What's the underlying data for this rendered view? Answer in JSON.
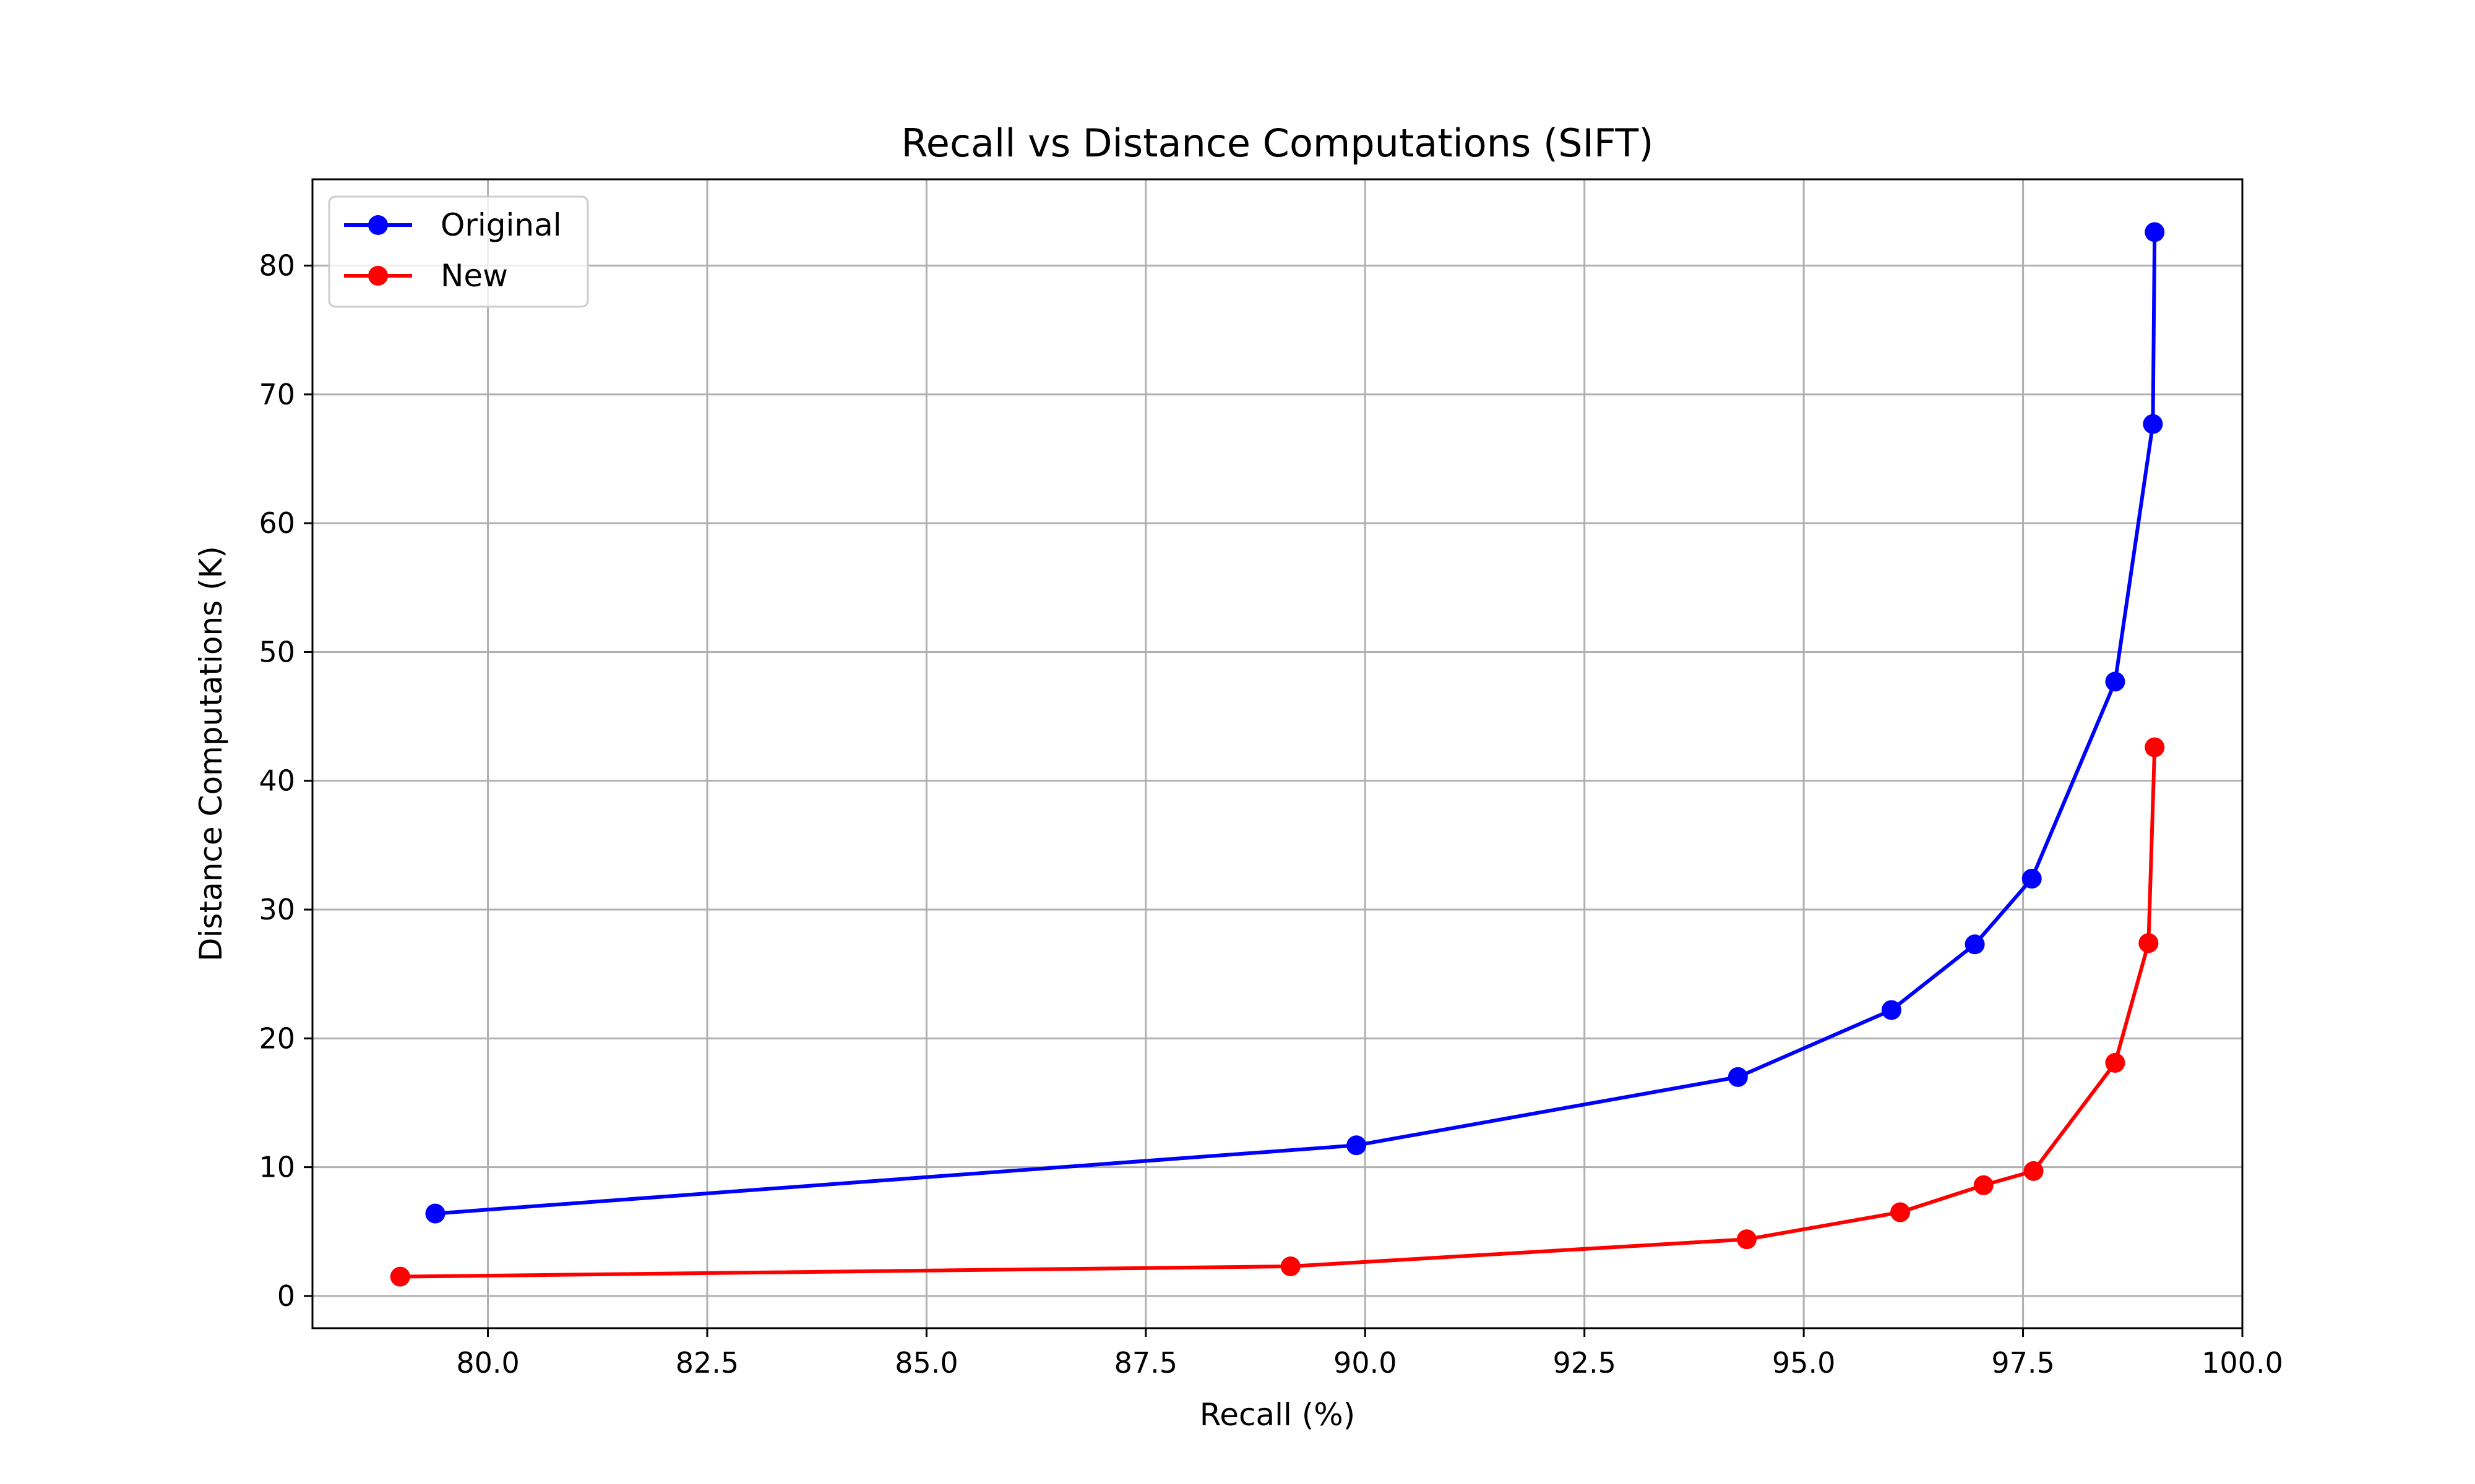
{
  "chart_data": {
    "type": "line",
    "title": "Recall vs Distance Computations (SIFT)",
    "xlabel": "Recall (%)",
    "ylabel": "Distance Computations (K)",
    "xlim": [
      78.0,
      100.0
    ],
    "ylim": [
      -2.5,
      86.7
    ],
    "xticks": [
      80.0,
      82.5,
      85.0,
      87.5,
      90.0,
      92.5,
      95.0,
      97.5,
      100.0
    ],
    "xtick_labels": [
      "80.0",
      "82.5",
      "85.0",
      "87.5",
      "90.0",
      "92.5",
      "95.0",
      "97.5",
      "100.0"
    ],
    "yticks": [
      0,
      10,
      20,
      30,
      40,
      50,
      60,
      70,
      80
    ],
    "ytick_labels": [
      "0",
      "10",
      "20",
      "30",
      "40",
      "50",
      "60",
      "70",
      "80"
    ],
    "grid": true,
    "legend_position": "top-left",
    "series": [
      {
        "name": "Original",
        "color": "#0000ff",
        "marker": "circle",
        "x": [
          79.4,
          89.9,
          94.25,
          96.0,
          96.95,
          97.6,
          98.55,
          98.98,
          99.0
        ],
        "y": [
          6.4,
          11.7,
          17.0,
          22.2,
          27.3,
          32.4,
          47.7,
          67.7,
          82.6
        ]
      },
      {
        "name": "New",
        "color": "#ff0000",
        "marker": "circle",
        "x": [
          79.0,
          89.15,
          94.35,
          96.1,
          97.05,
          97.62,
          98.55,
          98.93,
          99.0
        ],
        "y": [
          1.5,
          2.3,
          4.4,
          6.5,
          8.6,
          9.7,
          18.1,
          27.4,
          42.6
        ]
      }
    ]
  }
}
